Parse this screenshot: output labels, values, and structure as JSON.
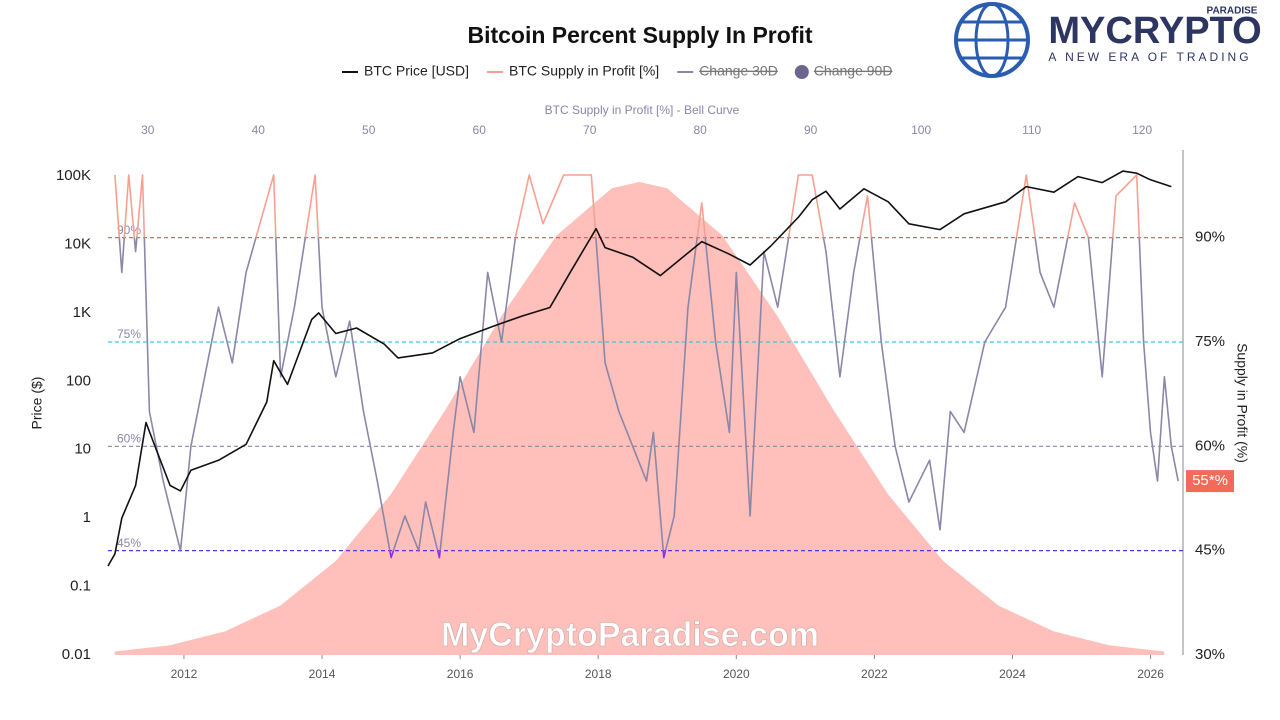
{
  "chart_data": {
    "type": "line",
    "title": "Bitcoin Percent Supply In Profit",
    "top_axis_label": "BTC Supply in Profit [%] - Bell Curve",
    "y_label": "Price ($)",
    "y2_label": "Supply in Profit (%)",
    "watermark": "MyCryptoParadise.com",
    "logo": {
      "name": "MYCRYPTO",
      "tag": "PARADISE",
      "slogan": "A NEW ERA OF TRADING"
    },
    "xlim": [
      2010.9,
      2026.47
    ],
    "xticks": [
      2012,
      2014,
      2016,
      2018,
      2020,
      2022,
      2024,
      2026
    ],
    "top_xlim": [
      26.4,
      123.7
    ],
    "top_xticks": [
      30,
      40,
      50,
      60,
      70,
      80,
      90,
      100,
      110,
      120
    ],
    "log_y": true,
    "ylim": [
      0.01,
      240000
    ],
    "yticks": [
      0.01,
      0.1,
      1,
      10,
      100,
      {
        "value": 1000,
        "label": "1K"
      },
      {
        "value": 10000,
        "label": "10K"
      },
      {
        "value": 100000,
        "label": "100K"
      }
    ],
    "y2lim": [
      30,
      102.6
    ],
    "y2ticks": [
      {
        "value": 30,
        "label": "30%"
      },
      {
        "value": 45,
        "label": "45%"
      },
      {
        "value": 60,
        "label": "60%"
      },
      {
        "value": 75,
        "label": "75%"
      },
      {
        "value": 90,
        "label": "90%"
      }
    ],
    "grid": false,
    "reference_lines": [
      {
        "value": 90,
        "label": "90%",
        "color": "#e06666"
      },
      {
        "value": 75,
        "label": "75%",
        "color": "#3fc6e0"
      },
      {
        "value": 60,
        "label": "60%",
        "color": "#8a87a8"
      },
      {
        "value": 45,
        "label": "45%",
        "color": "#4a3ae0"
      }
    ],
    "bell_curve": {
      "color": "#ffb8b3",
      "x": [
        27,
        32,
        37,
        42,
        47,
        52,
        57,
        62,
        67,
        72,
        74.5,
        77,
        82,
        87,
        92,
        97,
        102,
        107,
        112,
        117,
        122
      ],
      "values": [
        30.5,
        31.4,
        33.4,
        37.1,
        43.5,
        53.1,
        65.4,
        78.7,
        90.3,
        97.1,
        98,
        97.1,
        90.3,
        78.7,
        65.4,
        53.1,
        43.5,
        37.1,
        33.4,
        31.4,
        30.5
      ]
    },
    "series": [
      {
        "name": "BTC Price [USD]",
        "color": "#111111",
        "x": [
          2010.9,
          2011.0,
          2011.1,
          2011.3,
          2011.45,
          2011.6,
          2011.8,
          2011.95,
          2012.1,
          2012.5,
          2012.9,
          2013.2,
          2013.3,
          2013.5,
          2013.85,
          2013.95,
          2014.2,
          2014.5,
          2014.9,
          2015.1,
          2015.6,
          2016.0,
          2016.5,
          2016.9,
          2017.3,
          2017.6,
          2017.97,
          2018.1,
          2018.5,
          2018.9,
          2019.5,
          2019.9,
          2020.2,
          2020.5,
          2020.9,
          2021.1,
          2021.3,
          2021.5,
          2021.85,
          2022.2,
          2022.5,
          2022.95,
          2023.3,
          2023.9,
          2024.2,
          2024.6,
          2024.95,
          2025.3,
          2025.6,
          2025.8,
          2026.0,
          2026.3
        ],
        "values": [
          0.2,
          0.3,
          1,
          3,
          25,
          10,
          3,
          2.5,
          5,
          7,
          12,
          50,
          200,
          90,
          800,
          1000,
          500,
          600,
          350,
          220,
          260,
          420,
          650,
          900,
          1200,
          4000,
          17000,
          9000,
          6500,
          3500,
          11000,
          7200,
          5000,
          9500,
          25000,
          45000,
          60000,
          33000,
          65000,
          42000,
          20000,
          16500,
          28000,
          42000,
          70000,
          58000,
          98000,
          80000,
          118000,
          110000,
          88000,
          70000
        ]
      },
      {
        "name": "BTC Supply in Profit [%]",
        "color": "#f7a08f",
        "axis": "y2",
        "line_color": "#8a87a8",
        "color_above": "#f7a08f",
        "color_below": "#8b2cf5",
        "x": [
          2011.0,
          2011.1,
          2011.2,
          2011.3,
          2011.4,
          2011.5,
          2011.7,
          2011.95,
          2012.1,
          2012.3,
          2012.5,
          2012.7,
          2012.9,
          2013.1,
          2013.3,
          2013.4,
          2013.6,
          2013.9,
          2014.0,
          2014.2,
          2014.4,
          2014.6,
          2014.8,
          2015.0,
          2015.2,
          2015.4,
          2015.5,
          2015.7,
          2015.9,
          2016.0,
          2016.2,
          2016.4,
          2016.6,
          2016.8,
          2017.0,
          2017.2,
          2017.5,
          2017.9,
          2018.1,
          2018.3,
          2018.5,
          2018.7,
          2018.8,
          2018.95,
          2019.1,
          2019.3,
          2019.5,
          2019.7,
          2019.9,
          2020.0,
          2020.2,
          2020.4,
          2020.6,
          2020.9,
          2021.1,
          2021.3,
          2021.5,
          2021.7,
          2021.9,
          2022.1,
          2022.3,
          2022.5,
          2022.8,
          2022.95,
          2023.1,
          2023.3,
          2023.6,
          2023.9,
          2024.2,
          2024.4,
          2024.6,
          2024.9,
          2025.1,
          2025.3,
          2025.5,
          2025.8,
          2025.9,
          2026.0,
          2026.1,
          2026.2,
          2026.3,
          2026.4
        ],
        "values": [
          99,
          85,
          99,
          88,
          99,
          65,
          55,
          45,
          60,
          70,
          80,
          72,
          85,
          92,
          99,
          70,
          80,
          99,
          80,
          70,
          78,
          65,
          55,
          44,
          50,
          45,
          52,
          44,
          62,
          70,
          62,
          85,
          75,
          90,
          99,
          92,
          99,
          99,
          72,
          65,
          60,
          55,
          62,
          44,
          50,
          80,
          95,
          75,
          62,
          85,
          50,
          88,
          80,
          99,
          99,
          88,
          70,
          85,
          96,
          75,
          60,
          52,
          58,
          48,
          65,
          62,
          75,
          80,
          99,
          85,
          80,
          95,
          90,
          70,
          96,
          99,
          75,
          62,
          55,
          70,
          60,
          55
        ]
      }
    ],
    "legend_extra": [
      {
        "name": "Change 30D",
        "color": "#8a87a8",
        "symbol": "line",
        "hidden": true
      },
      {
        "name": "Change 90D",
        "color": "#6b6590",
        "symbol": "dot",
        "hidden": true
      }
    ],
    "last_label": {
      "value": 55,
      "label": "55*%",
      "color": "#f26a5a"
    }
  }
}
